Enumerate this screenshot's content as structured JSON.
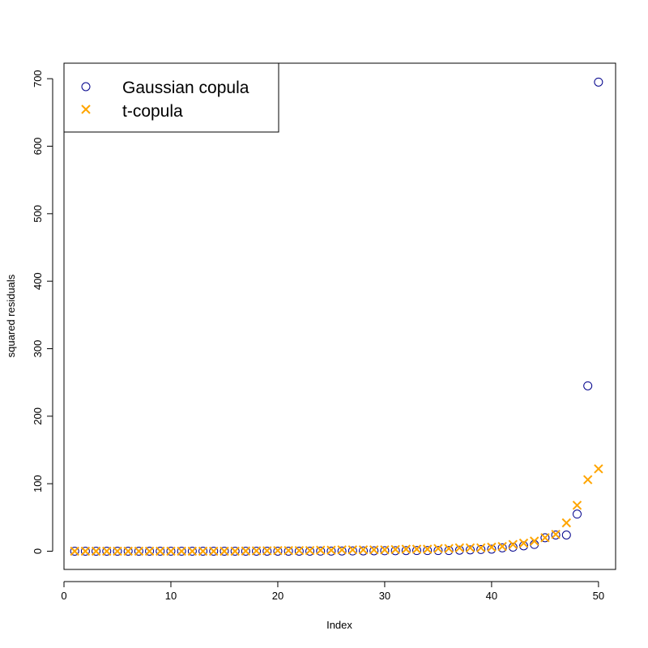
{
  "chart_data": {
    "type": "scatter",
    "title": "",
    "xlabel": "Index",
    "ylabel": "squared residuals",
    "xlim": [
      0,
      51.6
    ],
    "ylim": [
      -27,
      723
    ],
    "x_ticks": [
      0,
      10,
      20,
      30,
      40,
      50
    ],
    "y_ticks": [
      0,
      100,
      200,
      300,
      400,
      500,
      600,
      700
    ],
    "grid": false,
    "legend_position": "top-left",
    "x": [
      1,
      2,
      3,
      4,
      5,
      6,
      7,
      8,
      9,
      10,
      11,
      12,
      13,
      14,
      15,
      16,
      17,
      18,
      19,
      20,
      21,
      22,
      23,
      24,
      25,
      26,
      27,
      28,
      29,
      30,
      31,
      32,
      33,
      34,
      35,
      36,
      37,
      38,
      39,
      40,
      41,
      42,
      43,
      44,
      45,
      46,
      47,
      48,
      49,
      50
    ],
    "series": [
      {
        "name": "Gaussian copula",
        "marker": "circle",
        "color": "#00008B",
        "values": [
          0,
          0,
          0,
          0,
          0,
          0,
          0,
          0,
          0,
          0,
          0,
          0,
          0,
          0,
          0,
          0,
          0,
          0,
          0,
          0,
          0,
          0,
          0,
          0.1,
          0.2,
          0.3,
          0.4,
          0.5,
          0.6,
          0.7,
          0.8,
          0.9,
          1,
          1,
          1,
          1,
          1.5,
          2,
          2.5,
          3,
          5,
          6,
          8,
          10,
          20,
          24,
          24,
          55,
          245,
          695
        ]
      },
      {
        "name": "t-copula",
        "marker": "cross",
        "color": "#FFA500",
        "values": [
          0,
          0,
          0,
          0,
          0,
          0,
          0,
          0,
          0,
          0,
          0,
          0,
          0,
          0,
          0,
          0,
          0.3,
          0.5,
          0.7,
          1,
          1,
          1,
          1,
          1.5,
          1.5,
          2,
          2,
          2,
          2,
          2,
          2.5,
          3,
          3,
          3,
          4,
          4,
          5,
          5,
          5,
          6,
          7,
          10,
          12,
          15,
          20,
          25,
          42,
          68,
          106,
          122
        ]
      }
    ]
  }
}
